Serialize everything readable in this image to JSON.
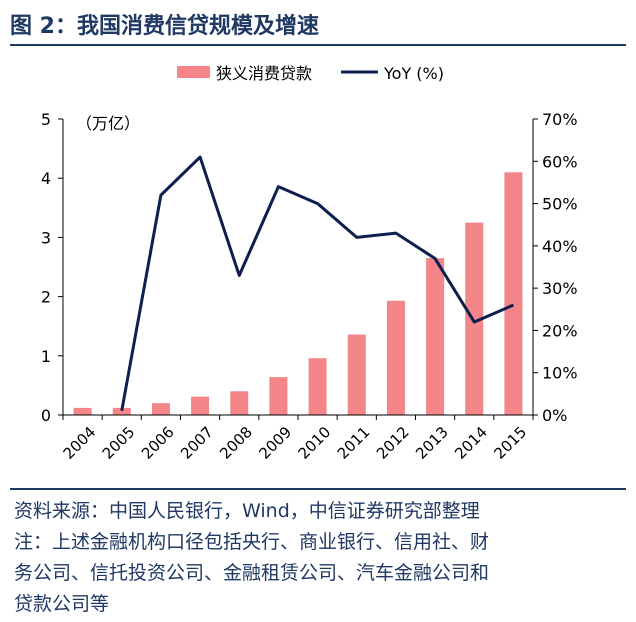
{
  "figure": {
    "title": "图 2：我国消费信贷规模及增速"
  },
  "notes": {
    "source": "资料来源：中国人民银行，Wind，中信证券研究部整理",
    "note_line1": "注：上述金融机构口径包括央行、商业银行、信用社、财",
    "note_line2": "务公司、信托投资公司、金融租赁公司、汽车金融公司和",
    "note_line3": "贷款公司等"
  },
  "chart_data": {
    "type": "bar",
    "categories": [
      "2004",
      "2005",
      "2006",
      "2007",
      "2008",
      "2009",
      "2010",
      "2011",
      "2012",
      "2013",
      "2014",
      "2015"
    ],
    "series": [
      {
        "name": "狭义消费贷款",
        "type": "bar",
        "axis": "left",
        "color": "#f4868a",
        "values": [
          0.12,
          0.12,
          0.2,
          0.31,
          0.4,
          0.64,
          0.96,
          1.36,
          1.93,
          2.65,
          3.25,
          4.1
        ]
      },
      {
        "name": "YoY (%)",
        "type": "line",
        "axis": "right",
        "color": "#0d1e4f",
        "values": [
          null,
          1,
          52,
          61,
          33,
          54,
          50,
          42,
          43,
          37,
          22,
          26
        ]
      }
    ],
    "left_axis": {
      "unit_label": "（万亿）",
      "ylim": [
        0,
        5
      ],
      "ticks": [
        "0",
        "1",
        "2",
        "3",
        "4",
        "5"
      ]
    },
    "right_axis": {
      "ylim": [
        0,
        70
      ],
      "ticks": [
        "0%",
        "10%",
        "20%",
        "30%",
        "40%",
        "50%",
        "60%",
        "70%"
      ]
    },
    "legend_position": "top-center",
    "grid": false
  }
}
